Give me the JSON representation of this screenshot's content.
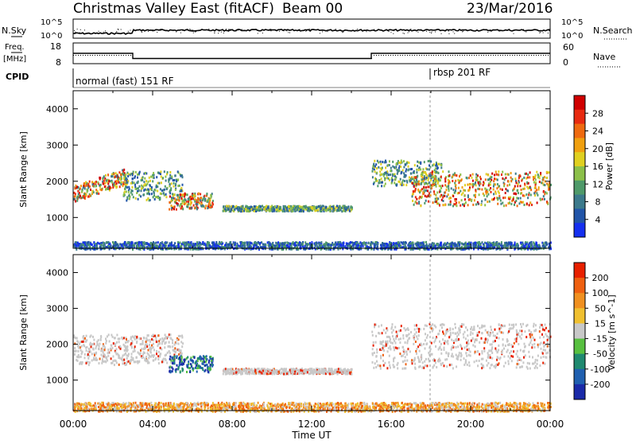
{
  "header": {
    "station": "Christmas Valley East (fitACF)",
    "beam": "Beam 00",
    "date": "23/Mar/2016"
  },
  "noise_panel": {
    "left_label": "N.Sky",
    "left_ticks": [
      "10^5",
      "10^0"
    ],
    "right_label": "N.Search",
    "right_ticks": [
      "10^5",
      "10^0"
    ]
  },
  "freq_panel": {
    "left_label_1": "Freq.",
    "left_label_2": "[MHz]",
    "left_ticks": [
      "18",
      "8"
    ],
    "right_label": "Nave",
    "right_ticks": [
      "60",
      "0"
    ]
  },
  "cpid": {
    "label": "CPID",
    "modes": [
      {
        "name": "normal (fast) 151 RF",
        "start_hour": 0.0
      },
      {
        "name": "rbsp 201 RF",
        "start_hour": 18.0
      }
    ]
  },
  "chart_data": [
    {
      "type": "heatmap",
      "parameter": "power",
      "ylabel": "Slant Range [km]",
      "ylim": [
        150,
        4500
      ],
      "yticks": [
        1000,
        2000,
        3000,
        4000
      ],
      "xlabel": "Time UT",
      "xlim": [
        0,
        24
      ],
      "xticks": [
        "00:00",
        "04:00",
        "08:00",
        "12:00",
        "16:00",
        "20:00",
        "00:00"
      ],
      "colorbar": {
        "label": "Power [dB]",
        "ticks": [
          "4",
          "8",
          "12",
          "16",
          "20",
          "24",
          "28"
        ],
        "colors": [
          "#1530f0",
          "#2255a8",
          "#3c7a8c",
          "#4f9a6a",
          "#8cc04a",
          "#e0d020",
          "#f0a010",
          "#ef6a10",
          "#e82a10",
          "#d00000"
        ]
      },
      "features": [
        {
          "t0": 0.0,
          "t1": 2.7,
          "r0": 1450,
          "r1": 1900,
          "r_end": 2400,
          "level": "high"
        },
        {
          "t0": 2.5,
          "t1": 5.5,
          "r0": 1500,
          "r1": 2300,
          "level": "mid"
        },
        {
          "t0": 4.8,
          "t1": 7.0,
          "r0": 1250,
          "r1": 1700,
          "level": "high"
        },
        {
          "t0": 7.5,
          "t1": 14.0,
          "r0": 1200,
          "r1": 1350,
          "level": "mid"
        },
        {
          "t0": 15.0,
          "t1": 18.5,
          "r0": 1900,
          "r1": 2600,
          "level": "mid"
        },
        {
          "t0": 17.0,
          "t1": 24.0,
          "r0": 1350,
          "r1": 2300,
          "level": "high"
        },
        {
          "t0": 0.0,
          "t1": 24.0,
          "r0": 150,
          "r1": 350,
          "level": "low"
        }
      ]
    },
    {
      "type": "heatmap",
      "parameter": "velocity",
      "ylabel": "Slant Range [km]",
      "ylim": [
        150,
        4500
      ],
      "yticks": [
        1000,
        2000,
        3000,
        4000
      ],
      "xlabel": "Time UT",
      "xlim": [
        0,
        24
      ],
      "xticks": [
        "00:00",
        "04:00",
        "08:00",
        "12:00",
        "16:00",
        "20:00",
        "00:00"
      ],
      "colorbar": {
        "label": "Velocity [m s^-1]",
        "ticks": [
          "200",
          "100",
          "50",
          "15",
          "-15",
          "-50",
          "-100",
          "-200"
        ],
        "colors": [
          "#1a2aa8",
          "#2060b0",
          "#208a70",
          "#58c040",
          "#c8c8c8",
          "#f0c030",
          "#f09020",
          "#ef6010",
          "#e82000"
        ]
      },
      "features": [
        {
          "t0": 0.0,
          "t1": 2.7,
          "r0": 1450,
          "r1": 2300,
          "level": "grey"
        },
        {
          "t0": 2.5,
          "t1": 5.5,
          "r0": 1500,
          "r1": 2300,
          "level": "grey"
        },
        {
          "t0": 4.8,
          "t1": 7.0,
          "r0": 1250,
          "r1": 1700,
          "level": "toward"
        },
        {
          "t0": 7.5,
          "t1": 14.0,
          "r0": 1200,
          "r1": 1350,
          "level": "grey"
        },
        {
          "t0": 15.0,
          "t1": 24.0,
          "r0": 1350,
          "r1": 2600,
          "level": "grey"
        },
        {
          "t0": 0.0,
          "t1": 24.0,
          "r0": 150,
          "r1": 400,
          "level": "away"
        }
      ]
    }
  ]
}
